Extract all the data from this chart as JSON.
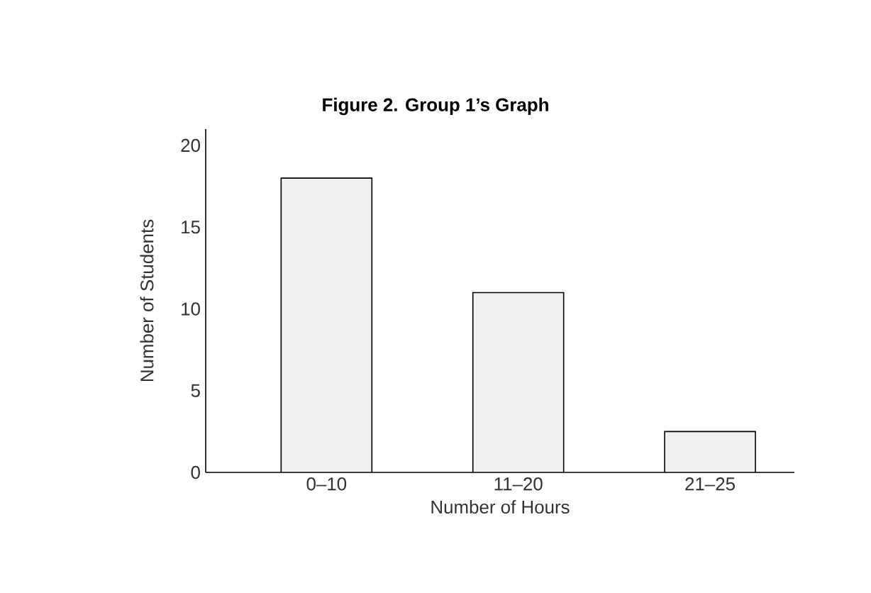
{
  "chart_data": {
    "type": "bar",
    "title": "Figure 2. Group 1’s Graph",
    "xlabel": "Number of Hours",
    "ylabel": "Number of Students",
    "categories": [
      "0–10",
      "11–20",
      "21–25"
    ],
    "values": [
      18,
      11,
      2.5
    ],
    "color": "#f0f0f0",
    "ylim": [
      0,
      21
    ],
    "yticks": [
      0,
      5,
      10,
      15,
      20
    ],
    "grid": false
  }
}
